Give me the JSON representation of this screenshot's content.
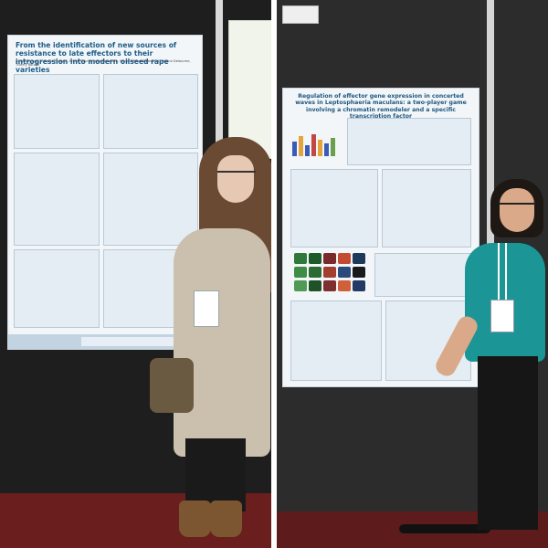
{
  "left_photo": {
    "poster": {
      "title": "From the identification of new sources of resistance to late effectors to their introgression into modern oilseed rape varieties",
      "authors": "Aurore Eignan, Camille Perlbets, Emilie Ducrot, Isabelle Lafitte, Marie-Hélène Balesdent, Régine Delourme, Thierry Rouxel"
    }
  },
  "right_photo": {
    "poster": {
      "title": "Regulation of effector gene expression in concerted waves in Leptosphaeria maculans: a two-player game involving a chromatin remodeler and a specific transcription factor"
    }
  }
}
